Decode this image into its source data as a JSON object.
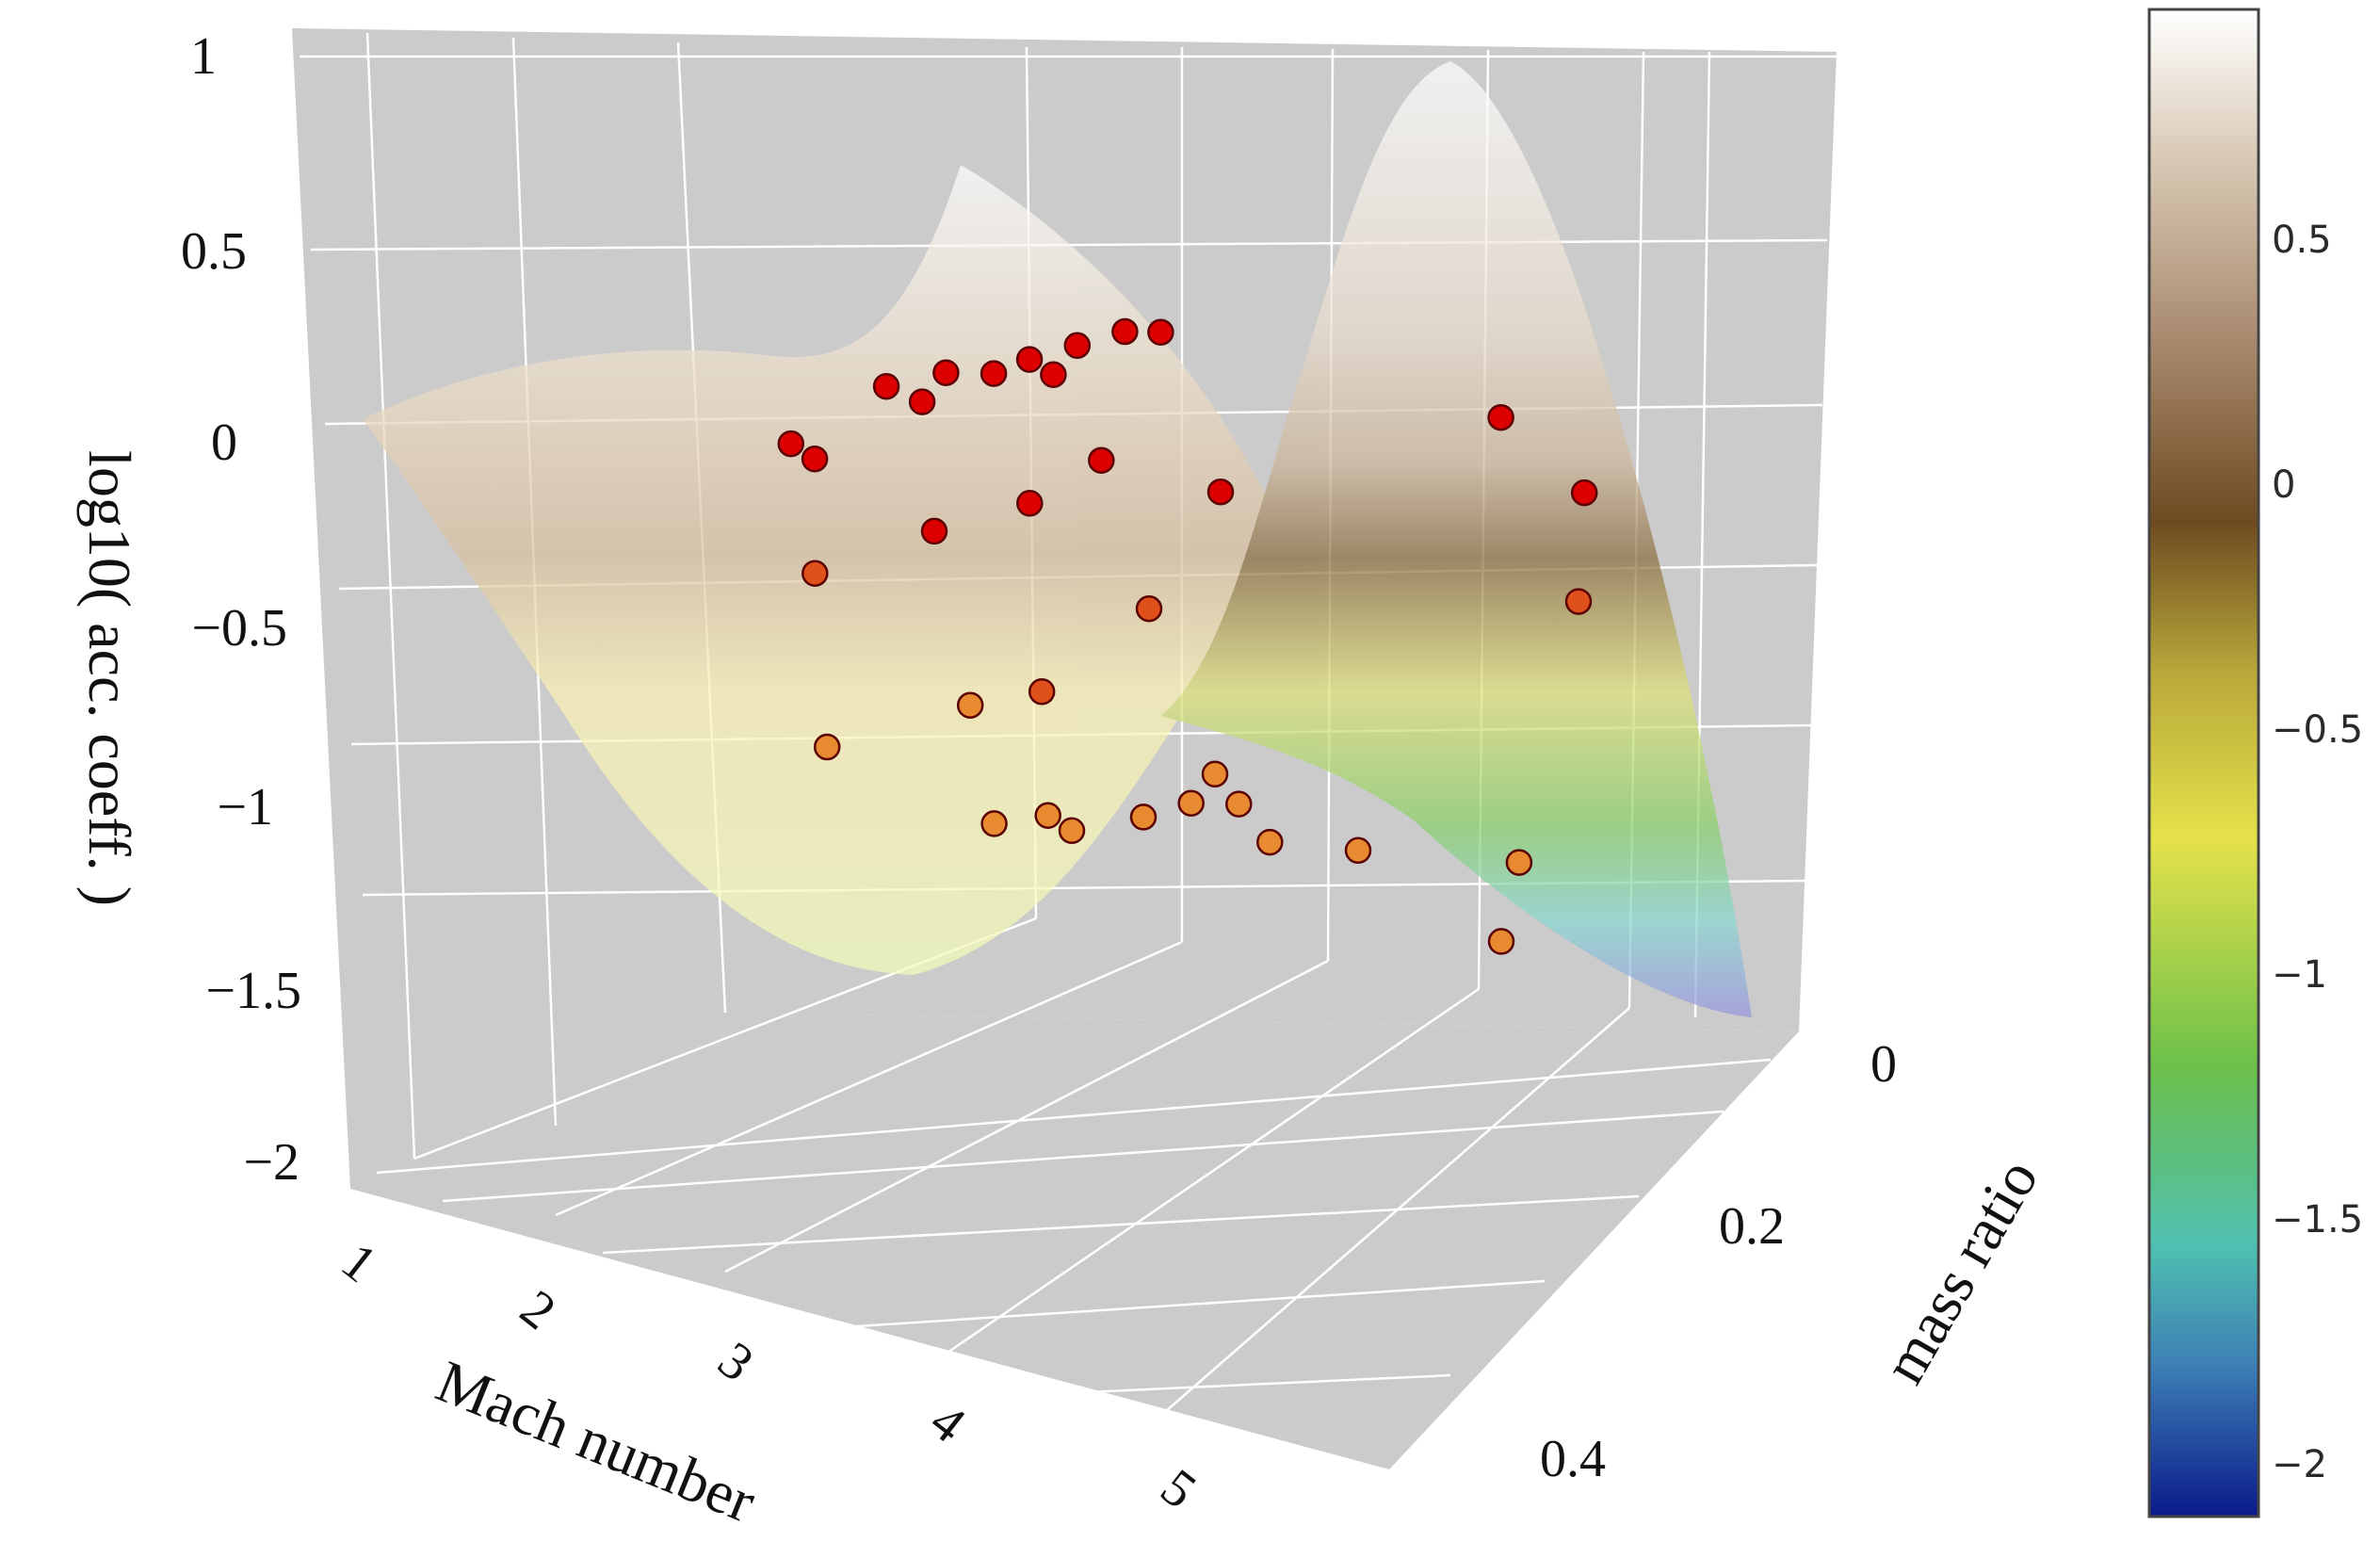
{
  "chart_data": {
    "type": "surface3d",
    "x_axis": {
      "label": "Mach number",
      "ticks": [
        "1",
        "2",
        "3",
        "4",
        "5"
      ],
      "range": [
        1,
        5.5
      ]
    },
    "y_axis": {
      "label": "mass ratio",
      "ticks": [
        "0",
        "0.2",
        "0.4"
      ],
      "range": [
        0,
        0.45
      ]
    },
    "z_axis": {
      "label": "log10( acc. coeff. )",
      "ticks": [
        "1",
        "0.5",
        "0",
        "−0.5",
        "−1",
        "−1.5",
        "−2"
      ],
      "range": [
        -2,
        1
      ]
    },
    "colorbar": {
      "ticks": [
        "0.5",
        "0",
        "−0.5",
        "−1",
        "−1.5",
        "−2"
      ],
      "range": [
        -2.1,
        0.95
      ],
      "colorscale": [
        "#0a1a8a",
        "#3d7fb5",
        "#4fc0b0",
        "#6dc14a",
        "#e5e14a",
        "#b8a83a",
        "#6e4a20",
        "#a88a6e",
        "#d8c8b4",
        "#ffffff"
      ]
    },
    "background": "#cccccc",
    "gridlines": true,
    "legend": "none",
    "surface_opacity": 0.7,
    "scatter_points": [
      {
        "x": 1.45,
        "y": 0.05,
        "z": 0.0
      },
      {
        "x": 1.55,
        "y": 0.05,
        "z": -0.05
      },
      {
        "x": 1.85,
        "y": 0.05,
        "z": 0.2
      },
      {
        "x": 2.0,
        "y": 0.05,
        "z": 0.15
      },
      {
        "x": 2.1,
        "y": 0.05,
        "z": 0.25
      },
      {
        "x": 2.3,
        "y": 0.05,
        "z": 0.25
      },
      {
        "x": 2.45,
        "y": 0.05,
        "z": 0.3
      },
      {
        "x": 2.55,
        "y": 0.05,
        "z": 0.25
      },
      {
        "x": 2.65,
        "y": 0.05,
        "z": 0.35
      },
      {
        "x": 2.85,
        "y": 0.05,
        "z": 0.4
      },
      {
        "x": 3.0,
        "y": 0.05,
        "z": 0.4
      },
      {
        "x": 1.9,
        "y": 0.15,
        "z": -0.3
      },
      {
        "x": 2.4,
        "y": 0.15,
        "z": -0.15
      },
      {
        "x": 2.8,
        "y": 0.15,
        "z": -0.05
      },
      {
        "x": 3.1,
        "y": 0.15,
        "z": 0.1
      },
      {
        "x": 3.6,
        "y": 0.15,
        "z": 0.0
      },
      {
        "x": 3.3,
        "y": 0.15,
        "z": -0.4
      },
      {
        "x": 2.3,
        "y": 0.25,
        "z": -0.75
      },
      {
        "x": 2.9,
        "y": 0.25,
        "z": -0.6
      },
      {
        "x": 3.2,
        "y": 0.25,
        "z": -0.55
      },
      {
        "x": 3.0,
        "y": 0.25,
        "z": -1.0
      },
      {
        "x": 3.4,
        "y": 0.3,
        "z": -0.9
      },
      {
        "x": 3.5,
        "y": 0.3,
        "z": -0.95
      },
      {
        "x": 3.8,
        "y": 0.3,
        "z": -0.9
      },
      {
        "x": 4.0,
        "y": 0.3,
        "z": -0.85
      },
      {
        "x": 4.1,
        "y": 0.3,
        "z": -0.75
      },
      {
        "x": 4.2,
        "y": 0.3,
        "z": -0.85
      },
      {
        "x": 4.4,
        "y": 0.32,
        "z": -0.95
      },
      {
        "x": 4.7,
        "y": 0.3,
        "z": -1.0
      },
      {
        "x": 4.6,
        "y": 0.1,
        "z": 0.2
      },
      {
        "x": 4.95,
        "y": 0.1,
        "z": -0.05
      },
      {
        "x": 5.1,
        "y": 0.15,
        "z": -0.35
      },
      {
        "x": 5.2,
        "y": 0.25,
        "z": -1.1
      },
      {
        "x": 5.3,
        "y": 0.3,
        "z": -1.3
      }
    ]
  }
}
